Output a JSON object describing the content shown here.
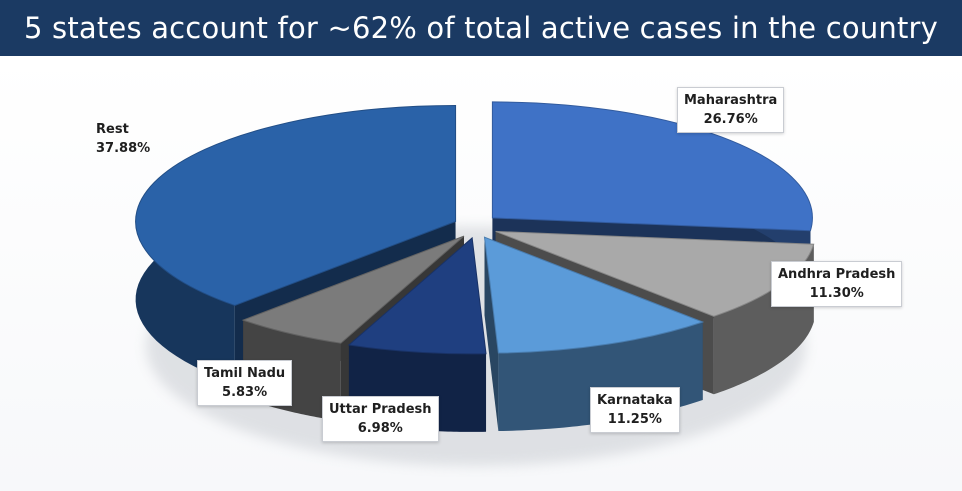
{
  "header": {
    "title": "5 states account for ~62% of total active cases in the country"
  },
  "chart_data": {
    "type": "pie",
    "title": "5 states account for ~62% of total active cases in the country",
    "three_d": true,
    "exploded": true,
    "slices": [
      {
        "name": "Maharashtra",
        "value": 26.76,
        "label": "26.76%",
        "color": "#3f72c6"
      },
      {
        "name": "Andhra Pradesh",
        "value": 11.3,
        "label": "11.30%",
        "color": "#a9a9a9"
      },
      {
        "name": "Karnataka",
        "value": 11.25,
        "label": "11.25%",
        "color": "#5b9bd9"
      },
      {
        "name": "Uttar Pradesh",
        "value": 6.98,
        "label": "6.98%",
        "color": "#1f3f80"
      },
      {
        "name": "Tamil Nadu",
        "value": 5.83,
        "label": "5.83%",
        "color": "#7b7b7b"
      },
      {
        "name": "Rest",
        "value": 37.88,
        "label": "37.88%",
        "color": "#2a62a8"
      }
    ]
  }
}
